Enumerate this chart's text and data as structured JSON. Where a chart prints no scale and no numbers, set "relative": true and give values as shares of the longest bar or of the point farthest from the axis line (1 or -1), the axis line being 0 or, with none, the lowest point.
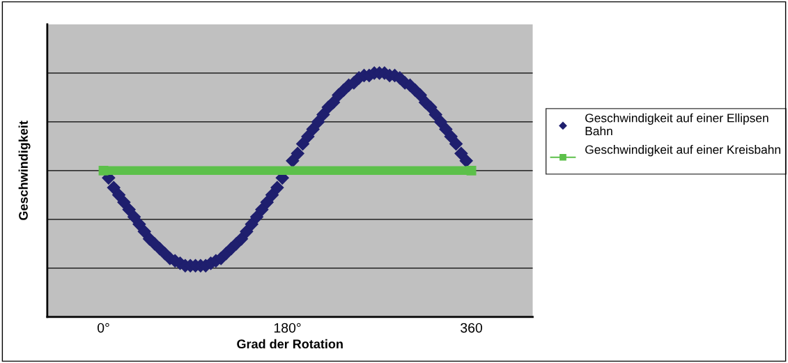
{
  "chart_data": {
    "type": "line",
    "relative": true,
    "xlabel": "Grad der Rotation",
    "ylabel": "Geschwindigkeit",
    "xlim": [
      -55,
      420
    ],
    "xticks": [
      {
        "value": 0,
        "label": "0°"
      },
      {
        "value": 180,
        "label": "180°"
      },
      {
        "value": 360,
        "label": "360"
      }
    ],
    "grid": "y",
    "legend": "right",
    "series": [
      {
        "name": "Geschwindigkeit auf einer Ellipsen Bahn",
        "type": "scatter",
        "marker": "diamond",
        "color": "#1f1f6e",
        "x": [
          5,
          10,
          15,
          20,
          25,
          30,
          35,
          40,
          45,
          50,
          55,
          60,
          65,
          70,
          75,
          80,
          85,
          90,
          95,
          100,
          105,
          110,
          115,
          120,
          125,
          130,
          135,
          140,
          145,
          150,
          155,
          160,
          165,
          170,
          175,
          185,
          190,
          195,
          200,
          205,
          210,
          215,
          220,
          225,
          230,
          235,
          240,
          245,
          250,
          255,
          260,
          265,
          270,
          275,
          280,
          285,
          290,
          295,
          300,
          305,
          310,
          315,
          320,
          325,
          330,
          335,
          340,
          345,
          350,
          355
        ],
        "values": [
          0.57,
          0.53,
          0.5,
          0.47,
          0.44,
          0.41,
          0.38,
          0.35,
          0.32,
          0.3,
          0.28,
          0.26,
          0.24,
          0.23,
          0.22,
          0.21,
          0.21,
          0.21,
          0.21,
          0.21,
          0.22,
          0.23,
          0.24,
          0.26,
          0.28,
          0.3,
          0.32,
          0.35,
          0.38,
          0.41,
          0.44,
          0.47,
          0.5,
          0.53,
          0.57,
          0.64,
          0.67,
          0.71,
          0.74,
          0.77,
          0.8,
          0.83,
          0.86,
          0.88,
          0.91,
          0.93,
          0.95,
          0.96,
          0.98,
          0.99,
          0.99,
          1.0,
          1.0,
          1.0,
          0.99,
          0.99,
          0.98,
          0.96,
          0.95,
          0.93,
          0.91,
          0.88,
          0.86,
          0.83,
          0.8,
          0.77,
          0.74,
          0.71,
          0.67,
          0.64
        ]
      },
      {
        "name": "Geschwindigkeit auf einer Kreisbahn",
        "marker": "square",
        "color": "#5cc04a",
        "x": [
          0,
          360
        ],
        "values": [
          0.6,
          0.6
        ]
      }
    ]
  }
}
